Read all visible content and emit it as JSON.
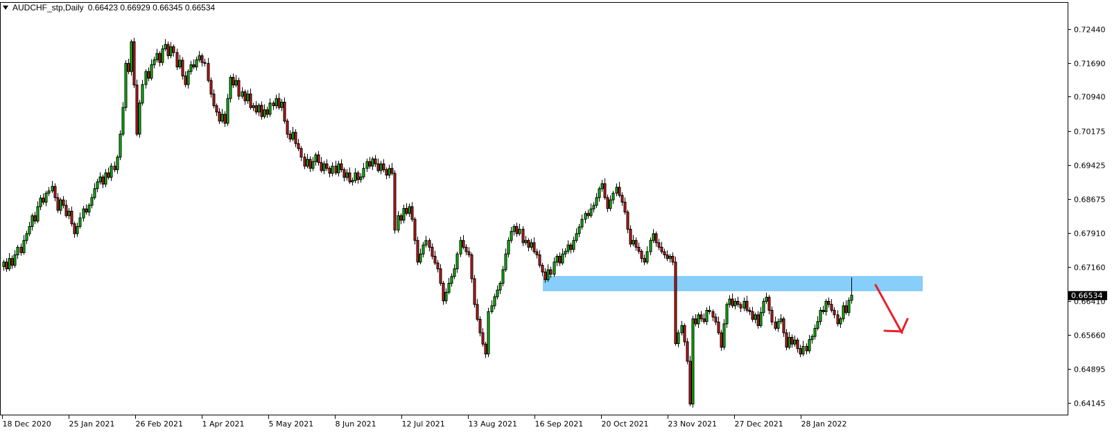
{
  "header": {
    "symbol": "AUDCHF_stp,Daily",
    "ohlc": "0.66423 0.66929 0.66345 0.66534"
  },
  "current_price": "0.66534",
  "colors": {
    "bull": "#00c800",
    "bear": "#d01818",
    "zone": "#87cefa",
    "arrow": "#e8202a",
    "price_label_bg": "#000000"
  },
  "chart_data": {
    "type": "candlestick",
    "timeframe": "Daily",
    "symbol": "AUDCHF_stp",
    "ylim": [
      0.635,
      0.73
    ],
    "grid": false,
    "y_ticks": [
      "0.72440",
      "0.71690",
      "0.70940",
      "0.70175",
      "0.69425",
      "0.68675",
      "0.67910",
      "0.67160",
      "0.66410",
      "0.65660",
      "0.64895",
      "0.64145"
    ],
    "x_ticks": [
      "18 Dec 2020",
      "25 Jan 2021",
      "26 Feb 2021",
      "1 Apr 2021",
      "5 May 2021",
      "8 Jun 2021",
      "12 Jul 2021",
      "13 Aug 2021",
      "16 Sep 2021",
      "20 Oct 2021",
      "23 Nov 2021",
      "27 Dec 2021",
      "28 Jan 2022"
    ],
    "last_bar": {
      "open": 0.66423,
      "high": 0.66929,
      "low": 0.66345,
      "close": 0.66534
    },
    "close": [
      0.6727,
      0.6712,
      0.6735,
      0.672,
      0.6743,
      0.676,
      0.6748,
      0.6775,
      0.679,
      0.6806,
      0.683,
      0.6818,
      0.685,
      0.6869,
      0.686,
      0.688,
      0.6885,
      0.6895,
      0.687,
      0.6842,
      0.6865,
      0.6853,
      0.683,
      0.684,
      0.6812,
      0.679,
      0.6806,
      0.6825,
      0.6845,
      0.6838,
      0.6853,
      0.687,
      0.689,
      0.6905,
      0.6916,
      0.69,
      0.6925,
      0.6915,
      0.694,
      0.6932,
      0.696,
      0.7011,
      0.707,
      0.7168,
      0.715,
      0.7216,
      0.712,
      0.7011,
      0.708,
      0.7121,
      0.715,
      0.7135,
      0.7165,
      0.7176,
      0.719,
      0.717,
      0.72,
      0.721,
      0.7185,
      0.7205,
      0.7192,
      0.716,
      0.7175,
      0.714,
      0.7121,
      0.715,
      0.7165,
      0.716,
      0.7176,
      0.7185,
      0.717,
      0.7168,
      0.713,
      0.71,
      0.7074,
      0.706,
      0.704,
      0.7055,
      0.7035,
      0.709,
      0.7137,
      0.712,
      0.713,
      0.7095,
      0.7105,
      0.7085,
      0.71,
      0.707,
      0.7074,
      0.706,
      0.7075,
      0.705,
      0.7065,
      0.7055,
      0.708,
      0.7074,
      0.709,
      0.707,
      0.7082,
      0.704,
      0.7011,
      0.7,
      0.7015,
      0.699,
      0.6979,
      0.696,
      0.694,
      0.6955,
      0.6935,
      0.695,
      0.6965,
      0.6948,
      0.693,
      0.6945,
      0.6935,
      0.6924,
      0.694,
      0.6925,
      0.6945,
      0.6932,
      0.6915,
      0.6925,
      0.6905,
      0.6908,
      0.6925,
      0.691,
      0.6916,
      0.6935,
      0.695,
      0.694,
      0.6956,
      0.6945,
      0.693,
      0.6945,
      0.6932,
      0.692,
      0.6935,
      0.6924,
      0.6798,
      0.683,
      0.682,
      0.6846,
      0.6835,
      0.685,
      0.6822,
      0.6775,
      0.6727,
      0.6745,
      0.6765,
      0.6775,
      0.676,
      0.674,
      0.6725,
      0.6712,
      0.668,
      0.6641,
      0.666,
      0.668,
      0.6695,
      0.6712,
      0.6745,
      0.6775,
      0.676,
      0.675,
      0.6743,
      0.669,
      0.6633,
      0.66,
      0.657,
      0.6545,
      0.6523,
      0.6617,
      0.663,
      0.665,
      0.6665,
      0.668,
      0.671,
      0.6745,
      0.6775,
      0.6795,
      0.6806,
      0.679,
      0.68,
      0.677,
      0.6775,
      0.676,
      0.677,
      0.675,
      0.6743,
      0.672,
      0.6705,
      0.6688,
      0.671,
      0.67,
      0.6727,
      0.674,
      0.6725,
      0.6745,
      0.6751,
      0.6765,
      0.6755,
      0.6775,
      0.679,
      0.6805,
      0.6822,
      0.6835,
      0.683,
      0.6845,
      0.6853,
      0.687,
      0.689,
      0.6901,
      0.687,
      0.6846,
      0.6865,
      0.688,
      0.6893,
      0.6875,
      0.686,
      0.6838,
      0.68,
      0.6767,
      0.6775,
      0.676,
      0.6751,
      0.6735,
      0.6727,
      0.675,
      0.6775,
      0.679,
      0.677,
      0.676,
      0.675,
      0.6743,
      0.6735,
      0.674,
      0.6727,
      0.6546,
      0.657,
      0.6586,
      0.655,
      0.6507,
      0.6412,
      0.6601,
      0.659,
      0.661,
      0.6601,
      0.6595,
      0.662,
      0.6617,
      0.6605,
      0.6594,
      0.657,
      0.6538,
      0.659,
      0.6633,
      0.6645,
      0.663,
      0.664,
      0.6633,
      0.6625,
      0.664,
      0.662,
      0.6617,
      0.66,
      0.661,
      0.6586,
      0.6615,
      0.664,
      0.6649,
      0.662,
      0.6594,
      0.658,
      0.6595,
      0.6601,
      0.657,
      0.6538,
      0.656,
      0.6545,
      0.6554,
      0.6535,
      0.6523,
      0.654,
      0.653,
      0.6555,
      0.6562,
      0.658,
      0.6595,
      0.662,
      0.6617,
      0.664,
      0.6633,
      0.662,
      0.661,
      0.659,
      0.6601,
      0.663,
      0.6615,
      0.6642,
      0.66534
    ],
    "annotations": [
      {
        "type": "rectangle-zone",
        "price_top": 0.6697,
        "price_bottom": 0.6663,
        "from": "Sep 2021",
        "extends_right": true
      },
      {
        "type": "arrow",
        "direction": "down"
      }
    ]
  }
}
